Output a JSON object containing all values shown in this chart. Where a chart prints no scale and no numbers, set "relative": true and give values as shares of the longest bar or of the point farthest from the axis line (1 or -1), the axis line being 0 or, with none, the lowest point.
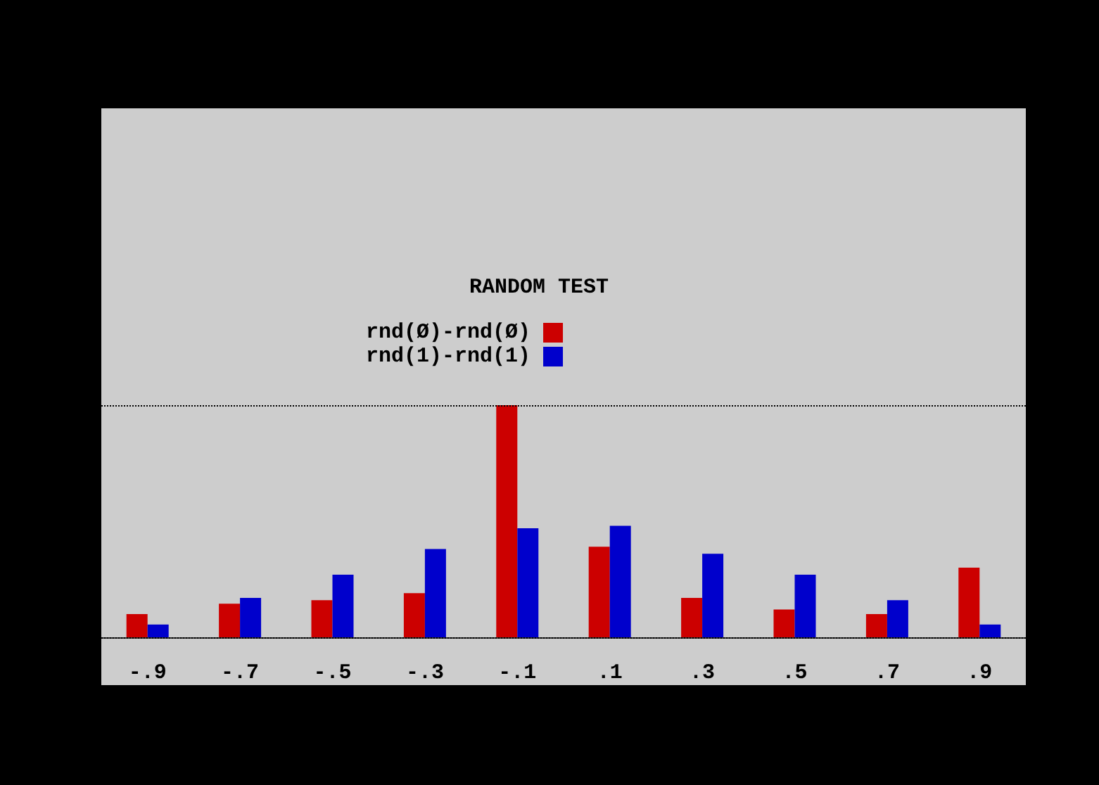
{
  "chart_data": {
    "type": "bar",
    "title": "RANDOM TEST",
    "relative": true,
    "categories": [
      "-.9",
      "-.7",
      "-.5",
      "-.3",
      "-.1",
      ".1",
      ".3",
      ".5",
      ".7",
      ".9"
    ],
    "series": [
      {
        "name": "rnd(Ø)-rnd(Ø)",
        "color": "#cc0000",
        "values": [
          0.1,
          0.145,
          0.16,
          0.19,
          1,
          0.39,
          0.17,
          0.12,
          0.1,
          0.3
        ]
      },
      {
        "name": "rnd(1)-rnd(1)",
        "color": "#0000cc",
        "values": [
          0.055,
          0.17,
          0.27,
          0.38,
          0.47,
          0.48,
          0.36,
          0.27,
          0.16,
          0.055
        ]
      }
    ],
    "ref_lines": [
      {
        "axis": "y",
        "value": 1,
        "line_style": "dotted",
        "color": "#000000"
      }
    ],
    "legend": "top",
    "grid": false
  }
}
